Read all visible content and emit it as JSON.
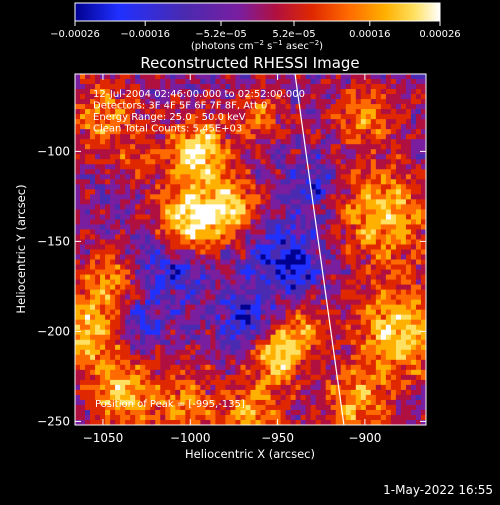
{
  "chart_data": {
    "type": "heatmap",
    "title": "Reconstructed RHESSI Image",
    "xlabel": "Heliocentric X (arcsec)",
    "ylabel": "Heliocentric Y (arcsec)",
    "xlim": [
      -1066,
      -865
    ],
    "ylim": [
      -252,
      -57
    ],
    "x_ticks": [
      "−1050",
      "−1000",
      "−950",
      "−900"
    ],
    "x_tick_values": [
      -1050,
      -1000,
      -950,
      -900
    ],
    "y_ticks": [
      "−100",
      "−150",
      "−200",
      "−250"
    ],
    "y_tick_values": [
      -100,
      -150,
      -200,
      -250
    ],
    "colorbar": {
      "tick_labels": [
        "−0.00026",
        "−0.00016",
        "−5.2e−05",
        "5.2e−05",
        "0.00016",
        "0.00026"
      ],
      "tick_values": [
        -0.00026,
        -0.00016,
        -5.2e-05,
        5.2e-05,
        0.00016,
        0.00026
      ],
      "range": [
        -0.00026,
        0.00026
      ],
      "units_prefix": "(photons cm",
      "units_exp1": "−2",
      "units_mid": " s",
      "units_exp2": "−1",
      "units_suffix": " asec",
      "units_exp3": "−2",
      "units_end": ")"
    },
    "info_lines": [
      "12-Jul-2004 02:46:00.000 to 02:52:00.000",
      "Detectors: 3F 4F 5F 6F 7F 8F, Att 0",
      "Energy Range: 25.0 - 50.0 keV",
      "Clean     Total Counts: 5.45E+03"
    ],
    "peak_label": "Position of Peak = [-995,-135]",
    "peak_position": [
      -995,
      -135
    ],
    "limb_line": [
      [
        -940,
        -57
      ],
      [
        -912,
        -252
      ]
    ],
    "colormap": [
      "#000090",
      "#2030ff",
      "#4a2ab0",
      "#7a1ea0",
      "#b01040",
      "#e02800",
      "#ff6a00",
      "#ffb000",
      "#ffe060",
      "#ffffff"
    ]
  },
  "footer": {
    "timestamp": "1-May-2022 16:55"
  }
}
